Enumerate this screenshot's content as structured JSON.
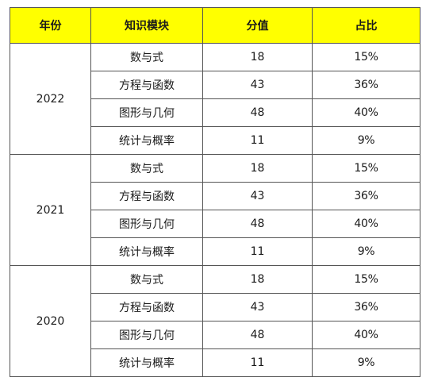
{
  "headers": {
    "year": "年份",
    "module": "知识模块",
    "score": "分值",
    "ratio": "占比"
  },
  "groups": [
    {
      "year": "2022",
      "rows": [
        {
          "module": "数与式",
          "score": "18",
          "ratio": "15%"
        },
        {
          "module": "方程与函数",
          "score": "43",
          "ratio": "36%"
        },
        {
          "module": "图形与几何",
          "score": "48",
          "ratio": "40%"
        },
        {
          "module": "统计与概率",
          "score": "11",
          "ratio": "9%"
        }
      ]
    },
    {
      "year": "2021",
      "rows": [
        {
          "module": "数与式",
          "score": "18",
          "ratio": "15%"
        },
        {
          "module": "方程与函数",
          "score": "43",
          "ratio": "36%"
        },
        {
          "module": "图形与几何",
          "score": "48",
          "ratio": "40%"
        },
        {
          "module": "统计与概率",
          "score": "11",
          "ratio": "9%"
        }
      ]
    },
    {
      "year": "2020",
      "rows": [
        {
          "module": "数与式",
          "score": "18",
          "ratio": "15%"
        },
        {
          "module": "方程与函数",
          "score": "43",
          "ratio": "36%"
        },
        {
          "module": "图形与几何",
          "score": "48",
          "ratio": "40%"
        },
        {
          "module": "统计与概率",
          "score": "11",
          "ratio": "9%"
        }
      ]
    }
  ],
  "colors": {
    "header_bg": "#ffff00",
    "border": "#555555",
    "text": "#1a1a1a"
  }
}
